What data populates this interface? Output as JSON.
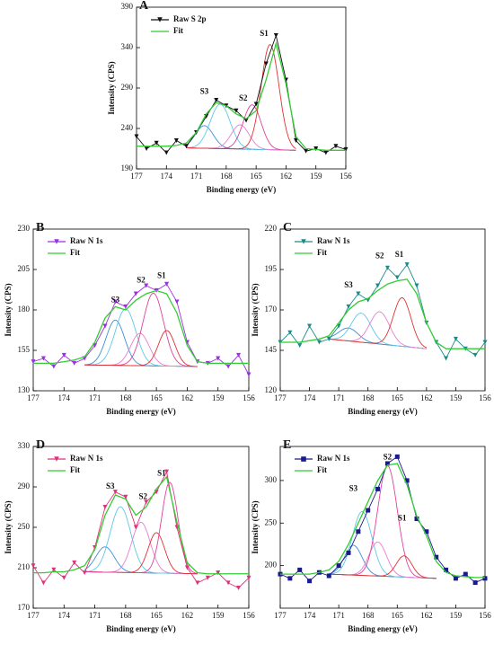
{
  "chart_data": [
    {
      "type": "line",
      "panel": "A",
      "ylabel": "Intensity (CPS)",
      "xlabel": "Binding energy (eV)",
      "xlim": [
        177,
        156
      ],
      "xticks": [
        177,
        174,
        171,
        168,
        165,
        162,
        159,
        156
      ],
      "ylim": [
        190,
        390
      ],
      "yticks": [
        190,
        240,
        290,
        340,
        390
      ],
      "x": [
        177,
        176,
        175,
        174,
        173,
        172,
        171,
        170,
        169,
        168,
        167,
        166,
        165,
        164,
        163,
        162,
        161,
        160,
        159,
        158,
        157,
        156
      ],
      "series": [
        {
          "name": "Raw S 2p",
          "color": "#111111",
          "marker": "triangle",
          "values": [
            230,
            215,
            222,
            210,
            225,
            218,
            235,
            255,
            275,
            268,
            262,
            250,
            270,
            320,
            355,
            300,
            225,
            212,
            215,
            210,
            218,
            214
          ]
        },
        {
          "name": "Fit",
          "color": "#33cc33",
          "marker": "none",
          "values": [
            218,
            218,
            218,
            218,
            219,
            222,
            235,
            258,
            272,
            268,
            258,
            252,
            262,
            300,
            345,
            295,
            230,
            215,
            214,
            213,
            213,
            213
          ]
        }
      ],
      "baseline": {
        "x": [
          172,
          161
        ],
        "y": [
          216,
          213
        ]
      },
      "components": [
        {
          "center": 170.2,
          "height": 28,
          "width": 0.9,
          "color": "#3b8fd9"
        },
        {
          "center": 168.6,
          "height": 55,
          "width": 1.0,
          "color": "#5cc8e8"
        },
        {
          "center": 166.6,
          "height": 30,
          "width": 0.9,
          "color": "#e87ed0"
        },
        {
          "center": 165.4,
          "height": 55,
          "width": 0.9,
          "color": "#e0409a"
        },
        {
          "center": 163.6,
          "height": 130,
          "width": 0.9,
          "color": "#e03030"
        }
      ],
      "annotations": [
        {
          "text": "S3",
          "x": 170.2,
          "y": 285
        },
        {
          "text": "S2",
          "x": 166.3,
          "y": 277
        },
        {
          "text": "S1",
          "x": 164.2,
          "y": 357
        }
      ]
    },
    {
      "type": "line",
      "panel": "B",
      "ylabel": "Intensity (CPS)",
      "xlabel": "Binding energy (eV)",
      "xlim": [
        177,
        156
      ],
      "xticks": [
        177,
        174,
        171,
        168,
        165,
        162,
        159,
        156
      ],
      "ylim": [
        130,
        230
      ],
      "yticks": [
        130,
        155,
        180,
        205,
        230
      ],
      "x": [
        177,
        176,
        175,
        174,
        173,
        172,
        171,
        170,
        169,
        168,
        167,
        166,
        165,
        164,
        163,
        162,
        161,
        160,
        159,
        158,
        157,
        156
      ],
      "series": [
        {
          "name": "Raw N 1s",
          "color": "#9b30e0",
          "marker": "triangle",
          "values": [
            148,
            150,
            145,
            152,
            147,
            150,
            158,
            170,
            185,
            182,
            190,
            195,
            192,
            196,
            185,
            160,
            148,
            147,
            150,
            145,
            152,
            140
          ]
        },
        {
          "name": "Fit",
          "color": "#33cc33",
          "marker": "none",
          "values": [
            147,
            147,
            147,
            148,
            149,
            151,
            160,
            175,
            182,
            180,
            186,
            190,
            192,
            190,
            178,
            158,
            148,
            147,
            147,
            147,
            147,
            147
          ]
        }
      ],
      "baseline": {
        "x": [
          172,
          161
        ],
        "y": [
          146,
          145
        ]
      },
      "components": [
        {
          "center": 169,
          "height": 28,
          "width": 0.9,
          "color": "#3b8fd9"
        },
        {
          "center": 168,
          "height": 35,
          "width": 1.0,
          "color": "#5cc8e8"
        },
        {
          "center": 166.6,
          "height": 20,
          "width": 0.9,
          "color": "#e87ed0"
        },
        {
          "center": 165.3,
          "height": 45,
          "width": 1.0,
          "color": "#e0409a"
        },
        {
          "center": 164,
          "height": 22,
          "width": 0.8,
          "color": "#e03030"
        }
      ],
      "annotations": [
        {
          "text": "S3",
          "x": 169,
          "y": 186
        },
        {
          "text": "S2",
          "x": 166.5,
          "y": 198
        },
        {
          "text": "S1",
          "x": 164.5,
          "y": 201
        }
      ]
    },
    {
      "type": "line",
      "panel": "C",
      "ylabel": "Intensity (CPS)",
      "xlabel": "Binding energy (eV)",
      "xlim": [
        177,
        156
      ],
      "xticks": [
        177,
        174,
        171,
        168,
        165,
        162,
        159,
        156
      ],
      "ylim": [
        120,
        220
      ],
      "yticks": [
        120,
        145,
        170,
        195,
        220
      ],
      "x": [
        177,
        176,
        175,
        174,
        173,
        172,
        171,
        170,
        169,
        168,
        167,
        166,
        165,
        164,
        163,
        162,
        161,
        160,
        159,
        158,
        157,
        156
      ],
      "series": [
        {
          "name": "Raw N 1s",
          "color": "#1a8a8a",
          "marker": "triangle",
          "values": [
            150,
            156,
            148,
            160,
            150,
            152,
            160,
            172,
            180,
            176,
            185,
            196,
            190,
            198,
            185,
            162,
            150,
            140,
            152,
            146,
            142,
            150
          ]
        },
        {
          "name": "Fit",
          "color": "#33cc33",
          "marker": "none",
          "values": [
            150,
            150,
            150,
            151,
            152,
            154,
            162,
            170,
            175,
            177,
            182,
            186,
            188,
            189,
            180,
            162,
            150,
            146,
            146,
            146,
            146,
            146
          ]
        }
      ],
      "baseline": {
        "x": [
          172,
          162
        ],
        "y": [
          152,
          146
        ]
      },
      "components": [
        {
          "center": 170,
          "height": 8,
          "width": 1.0,
          "color": "#3b8fd9"
        },
        {
          "center": 168.7,
          "height": 18,
          "width": 1.0,
          "color": "#5cc8e8"
        },
        {
          "center": 166.8,
          "height": 20,
          "width": 1.0,
          "color": "#e87ed0"
        },
        {
          "center": 164.5,
          "height": 30,
          "width": 0.9,
          "color": "#e03030"
        }
      ],
      "annotations": [
        {
          "text": "S3",
          "x": 170,
          "y": 185
        },
        {
          "text": "S2",
          "x": 166.8,
          "y": 203
        },
        {
          "text": "S1",
          "x": 164.8,
          "y": 204
        }
      ]
    },
    {
      "type": "line",
      "panel": "D",
      "ylabel": "Intensity (CPS)",
      "xlabel": "Binding energy (eV)",
      "xlim": [
        177,
        156
      ],
      "xticks": [
        177,
        174,
        171,
        168,
        165,
        162,
        159,
        156
      ],
      "ylim": [
        170,
        330
      ],
      "yticks": [
        170,
        210,
        250,
        290,
        330
      ],
      "x": [
        177,
        176,
        175,
        174,
        173,
        172,
        171,
        170,
        169,
        168,
        167,
        166,
        165,
        164,
        163,
        162,
        161,
        160,
        159,
        158,
        157,
        156
      ],
      "series": [
        {
          "name": "Raw N 1s",
          "color": "#e0307a",
          "marker": "triangle",
          "values": [
            212,
            195,
            208,
            200,
            215,
            205,
            230,
            270,
            285,
            280,
            250,
            275,
            285,
            305,
            250,
            210,
            195,
            200,
            205,
            195,
            190,
            200
          ]
        },
        {
          "name": "Fit",
          "color": "#33cc33",
          "marker": "none",
          "values": [
            205,
            205,
            206,
            206,
            208,
            212,
            228,
            262,
            282,
            278,
            262,
            270,
            288,
            300,
            255,
            215,
            205,
            204,
            204,
            204,
            204,
            204
          ]
        }
      ],
      "baseline": {
        "x": [
          172,
          161
        ],
        "y": [
          206,
          204
        ]
      },
      "components": [
        {
          "center": 170,
          "height": 25,
          "width": 0.9,
          "color": "#3b8fd9"
        },
        {
          "center": 168.5,
          "height": 65,
          "width": 1.0,
          "color": "#5cc8e8"
        },
        {
          "center": 166.5,
          "height": 50,
          "width": 0.9,
          "color": "#e87ed0"
        },
        {
          "center": 165,
          "height": 40,
          "width": 0.8,
          "color": "#e03030"
        },
        {
          "center": 163.7,
          "height": 90,
          "width": 0.8,
          "color": "#e0409a"
        }
      ],
      "annotations": [
        {
          "text": "S3",
          "x": 169.5,
          "y": 290
        },
        {
          "text": "S2",
          "x": 166.3,
          "y": 280
        },
        {
          "text": "S1",
          "x": 164.5,
          "y": 303
        }
      ]
    },
    {
      "type": "line",
      "panel": "E",
      "ylabel": "Intensity (CPS)",
      "xlabel": "Binding energy (eV)",
      "xlim": [
        177,
        156
      ],
      "xticks": [
        177,
        174,
        171,
        168,
        165,
        162,
        159,
        156
      ],
      "ylim": [
        150,
        340
      ],
      "yticks": [
        200,
        250,
        300
      ],
      "x": [
        177,
        176,
        175,
        174,
        173,
        172,
        171,
        170,
        169,
        168,
        167,
        166,
        165,
        164,
        163,
        162,
        161,
        160,
        159,
        158,
        157,
        156
      ],
      "series": [
        {
          "name": "Raw N 1s",
          "color": "#1a1a8a",
          "marker": "square",
          "values": [
            190,
            185,
            195,
            182,
            192,
            188,
            200,
            215,
            240,
            265,
            290,
            320,
            328,
            300,
            255,
            240,
            210,
            195,
            185,
            190,
            180,
            185
          ]
        },
        {
          "name": "Fit",
          "color": "#33cc33",
          "marker": "none",
          "values": [
            190,
            190,
            190,
            190,
            192,
            195,
            205,
            225,
            250,
            275,
            300,
            318,
            320,
            295,
            258,
            235,
            205,
            192,
            188,
            187,
            186,
            186
          ]
        }
      ],
      "baseline": {
        "x": [
          172,
          161
        ],
        "y": [
          190,
          185
        ]
      },
      "components": [
        {
          "center": 169.5,
          "height": 35,
          "width": 0.9,
          "color": "#3b8fd9"
        },
        {
          "center": 168.6,
          "height": 75,
          "width": 1.0,
          "color": "#5cc8e8"
        },
        {
          "center": 167,
          "height": 40,
          "width": 0.9,
          "color": "#e87ed0"
        },
        {
          "center": 166,
          "height": 130,
          "width": 1.0,
          "color": "#e0409a"
        },
        {
          "center": 164.3,
          "height": 25,
          "width": 0.8,
          "color": "#e03030"
        }
      ],
      "annotations": [
        {
          "text": "S3",
          "x": 169.5,
          "y": 290
        },
        {
          "text": "S2",
          "x": 166,
          "y": 327
        },
        {
          "text": "S1",
          "x": 164.5,
          "y": 255
        }
      ]
    }
  ]
}
